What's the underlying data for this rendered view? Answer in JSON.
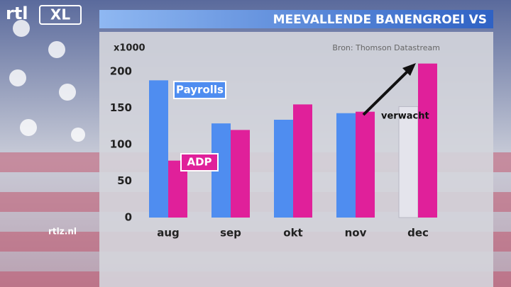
{
  "logo": {
    "brand": "rtl",
    "product": "XL"
  },
  "footer": "rtlz.nl",
  "chart_data": {
    "type": "bar",
    "title": "MEEVALLENDE BANENGROEI VS",
    "unit_label": "x1000",
    "source": "Bron: Thomson Datastream",
    "categories": [
      "aug",
      "sep",
      "okt",
      "nov",
      "dec"
    ],
    "series": [
      {
        "name": "Payrolls",
        "color": "#4f8df0",
        "colors": [
          "#4f8df0",
          "#4f8df0",
          "#4f8df0",
          "#4f8df0",
          "#e4e4ec"
        ],
        "values": [
          188,
          129,
          134,
          143,
          152
        ]
      },
      {
        "name": "ADP",
        "color": "#e0209a",
        "values": [
          78,
          120,
          155,
          145,
          211
        ]
      }
    ],
    "annotation": "verwacht",
    "ylim": [
      0,
      200
    ],
    "yticks": [
      0,
      50,
      100,
      150,
      200
    ],
    "grid": false
  }
}
